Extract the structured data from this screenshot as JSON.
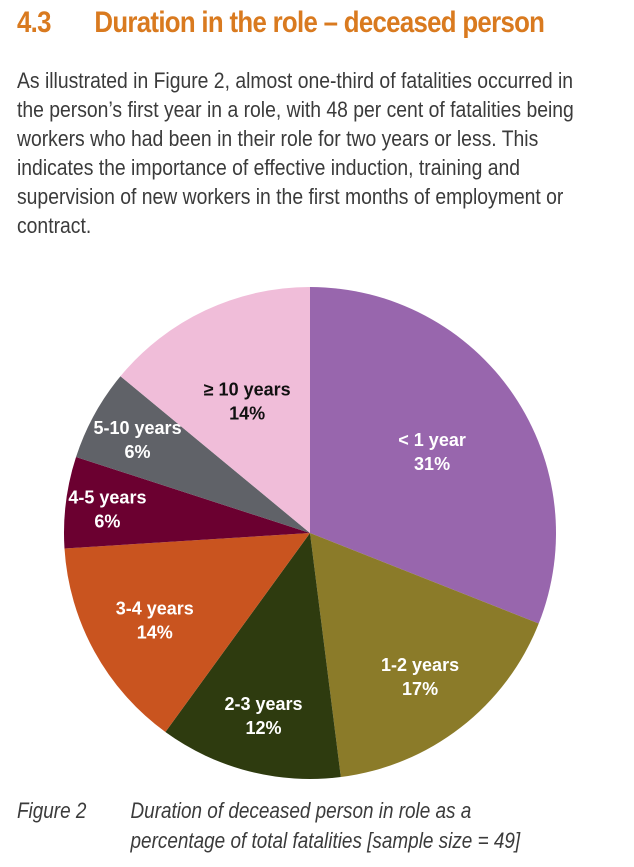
{
  "heading": {
    "number": "4.3",
    "title": "Duration in the role – deceased person"
  },
  "paragraph": "As illustrated in Figure 2, almost one-third of fatalities occurred in the person’s first year in a role, with 48 per cent of fatalities being workers who had been in their role for two years or less. This indicates the importance of effective induction, training and supervision of new workers in the first months of employment or contract.",
  "caption": {
    "label": "Figure 2",
    "line1": "Duration of deceased person in role as a",
    "line2": "percentage of total fatalities [sample size = 49]"
  },
  "chart_data": {
    "type": "pie",
    "title": "Duration of deceased person in role as a percentage of total fatalities [sample size = 49]",
    "start": "12 o'clock, clockwise",
    "slices": [
      {
        "label": "< 1 year",
        "value": 31,
        "value_label": "31%",
        "color": "#9866ad",
        "text_color": "#ffffff"
      },
      {
        "label": "1-2 years",
        "value": 17,
        "value_label": "17%",
        "color": "#8b7b29",
        "text_color": "#ffffff"
      },
      {
        "label": "2-3 years",
        "value": 12,
        "value_label": "12%",
        "color": "#2e3b0f",
        "text_color": "#ffffff"
      },
      {
        "label": "3-4 years",
        "value": 14,
        "value_label": "14%",
        "color": "#c9541f",
        "text_color": "#ffffff"
      },
      {
        "label": "4-5 years",
        "value": 6,
        "value_label": "6%",
        "color": "#6b0030",
        "text_color": "#ffffff"
      },
      {
        "label": "5-10 years",
        "value": 6,
        "value_label": "6%",
        "color": "#606268",
        "text_color": "#ffffff"
      },
      {
        "label": "≥ 10 years",
        "value": 14,
        "value_label": "14%",
        "color": "#f0bdd9",
        "text_color": "#111111"
      }
    ]
  }
}
